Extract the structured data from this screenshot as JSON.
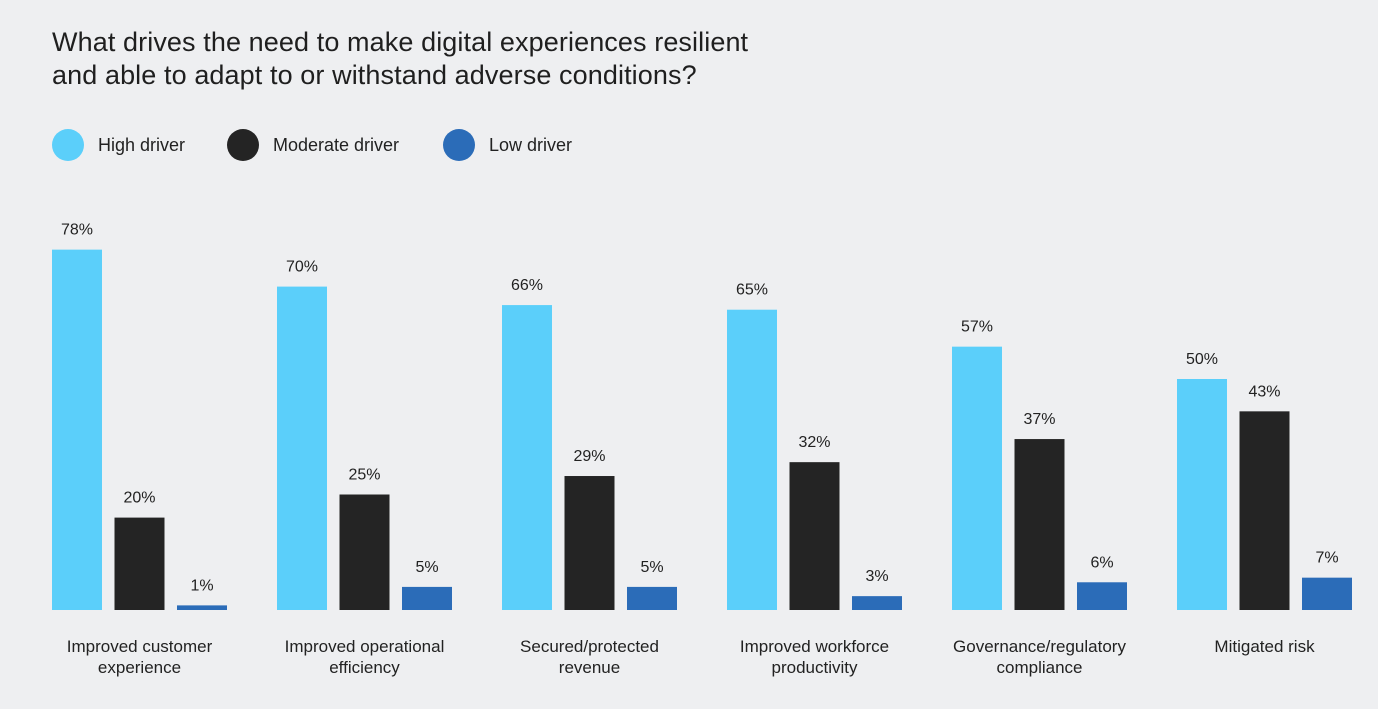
{
  "title_lines": [
    "What drives the need to make digital experiences resilient",
    "and able to adapt to or withstand adverse conditions?"
  ],
  "colors": {
    "background": "#eeeff1",
    "text": "#222222"
  },
  "chart_data": {
    "type": "bar",
    "title": "What drives the need to make digital experiences resilient and able to adapt to or withstand adverse conditions?",
    "categories": [
      [
        "Improved customer",
        "experience"
      ],
      [
        "Improved operational",
        "efficiency"
      ],
      [
        "Secured/protected",
        "revenue"
      ],
      [
        "Improved workforce",
        "productivity"
      ],
      [
        "Governance/regulatory",
        "compliance"
      ],
      [
        "Mitigated risk"
      ]
    ],
    "series": [
      {
        "name": "High driver",
        "color": "#5bcffa",
        "values": [
          78,
          70,
          66,
          65,
          57,
          50
        ]
      },
      {
        "name": "Moderate driver",
        "color": "#242424",
        "values": [
          20,
          25,
          29,
          32,
          37,
          43
        ]
      },
      {
        "name": "Low driver",
        "color": "#2b6cb8",
        "values": [
          1,
          5,
          5,
          3,
          6,
          7
        ]
      }
    ],
    "value_suffix": "%",
    "ylim": [
      0,
      100
    ],
    "xlabel": "",
    "ylabel": "",
    "grid": false,
    "legend_position": "top-left"
  }
}
